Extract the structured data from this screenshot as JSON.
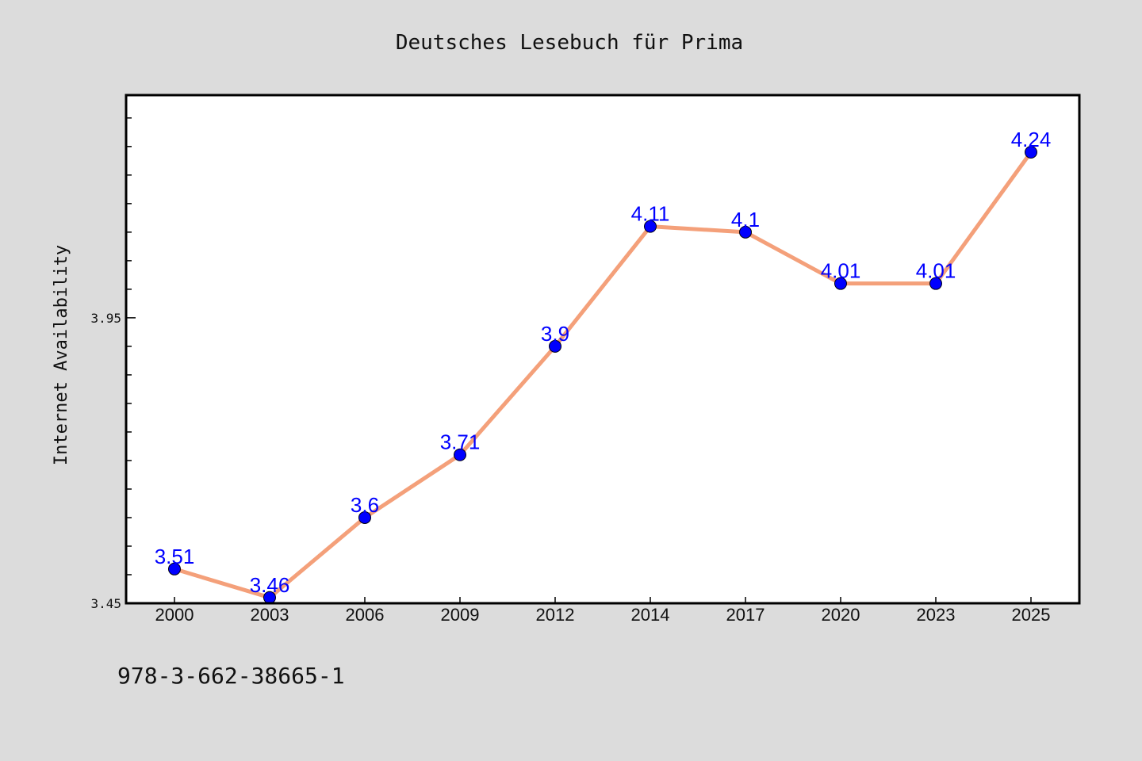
{
  "page": {
    "background": "#dcdcdc",
    "footnote": "978-3-662-38665-1"
  },
  "chart_data": {
    "type": "line",
    "title": "Deutsches Lesebuch für Prima",
    "xlabel": "",
    "ylabel": "Internet Availability",
    "categories": [
      "2000",
      "2003",
      "2006",
      "2009",
      "2012",
      "2014",
      "2017",
      "2020",
      "2023",
      "2025"
    ],
    "series": [
      {
        "values": [
          3.51,
          3.46,
          3.6,
          3.71,
          3.9,
          4.11,
          4.1,
          4.01,
          4.01,
          4.24
        ],
        "labels": [
          "3.51",
          "3.46",
          "3.6",
          "3.71",
          "3.9",
          "4.11",
          "4.1",
          "4.01",
          "4.01",
          "4.24"
        ],
        "line_color": "#f4a07a",
        "marker_color": "#0000ff"
      }
    ],
    "ylim": [
      3.45,
      4.34
    ],
    "yticks": [
      3.45,
      3.95
    ],
    "ytick_labels": [
      "3.45",
      "3.95"
    ],
    "minor_ytick_step": 0.05,
    "grid": false,
    "legend": "none",
    "plot_background": "#ffffff"
  }
}
